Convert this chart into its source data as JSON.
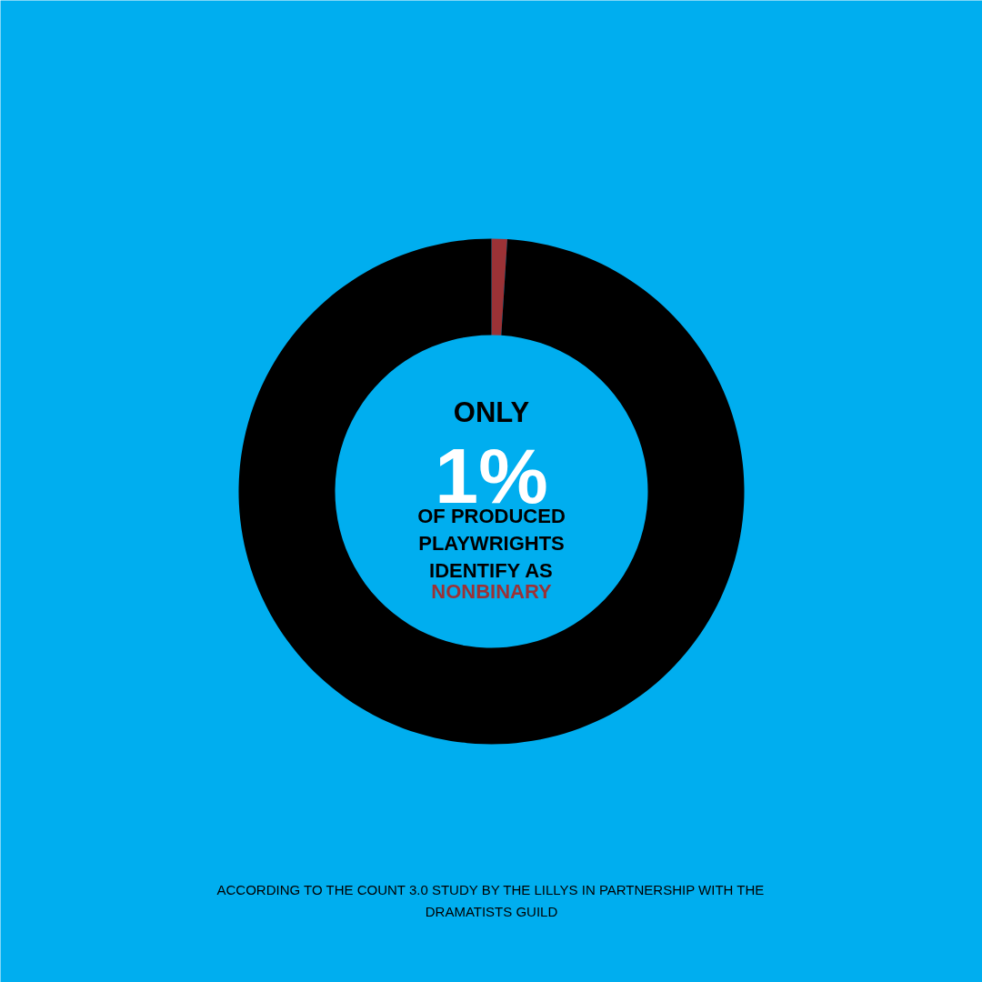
{
  "chart_data": {
    "type": "donut",
    "categories": [
      null,
      null
    ],
    "values": [
      1,
      99
    ],
    "colors": [
      "#9b3236",
      "#000000"
    ],
    "annotations": [
      "ONLY",
      "1%",
      "OF PRODUCED\nPLAYWRIGHTS\nIDENTIFY AS",
      "NONBINARY",
      "ACCORDING TO THE COUNT 3.0 STUDY BY THE LILLYS IN PARTNERSHIP WITH THE\nDRAMATISTS GUILD"
    ]
  }
}
